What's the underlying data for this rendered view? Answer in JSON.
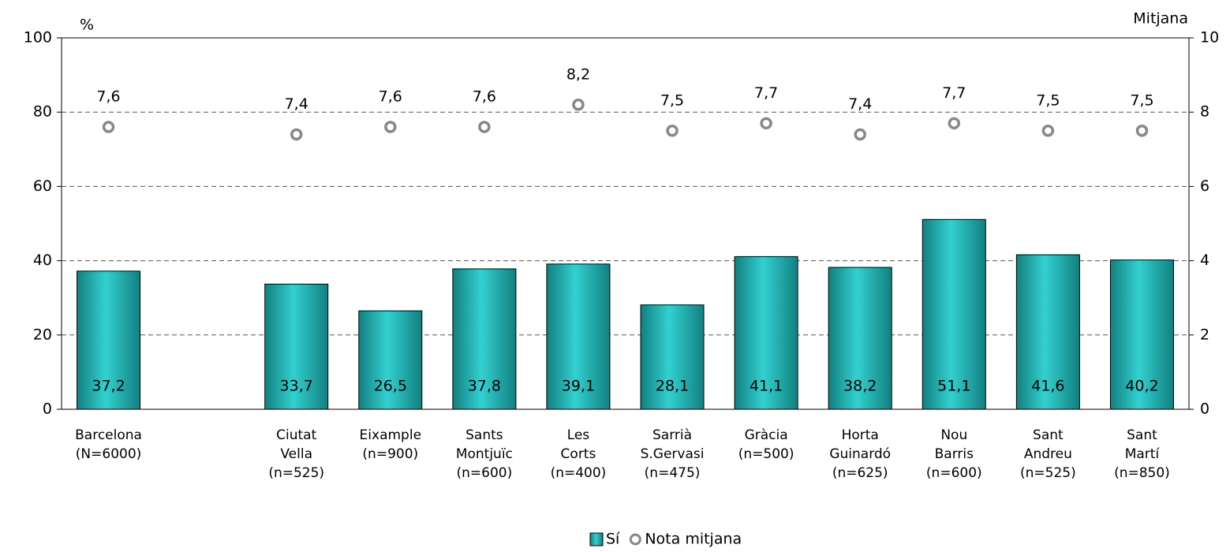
{
  "chart_data": {
    "type": "bar",
    "ylabel": "%",
    "y2label": "Mitjana",
    "categories": [
      "Barcelona\n(N=6000)",
      null,
      "Ciutat\nVella\n(n=525)",
      "Eixample\n(n=900)",
      "Sants\nMontjuïc\n(n=600)",
      "Les\nCorts\n(n=400)",
      "Sarrià\nS.Gervasi\n(n=475)",
      "Gràcia\n(n=500)",
      "Horta\nGuinardó\n(n=625)",
      "Nou\nBarris\n(n=600)",
      "Sant\nAndreu\n(n=525)",
      "Sant\nMartí\n(n=850)"
    ],
    "series": [
      {
        "name": "Sí",
        "type": "bar",
        "color": "#2ec8c8",
        "values": [
          37.2,
          null,
          33.7,
          26.5,
          37.8,
          39.1,
          28.1,
          41.1,
          38.2,
          51.1,
          41.6,
          40.2
        ],
        "value_labels": [
          "37,2",
          null,
          "33,7",
          "26,5",
          "37,8",
          "39,1",
          "28,1",
          "41,1",
          "38,2",
          "51,1",
          "41,6",
          "40,2"
        ]
      },
      {
        "name": "Nota mitjana",
        "type": "scatter",
        "axis": "y2",
        "color": "#888888",
        "values": [
          7.6,
          null,
          7.4,
          7.6,
          7.6,
          8.2,
          7.5,
          7.7,
          7.4,
          7.7,
          7.5,
          7.5
        ],
        "value_labels": [
          "7,6",
          null,
          "7,4",
          "7,6",
          "7,6",
          "8,2",
          "7,5",
          "7,7",
          "7,4",
          "7,7",
          "7,5",
          "7,5"
        ]
      }
    ],
    "ylim": [
      0,
      100
    ],
    "yticks": [
      0,
      20,
      40,
      60,
      80,
      100
    ],
    "y2lim": [
      0,
      10
    ],
    "y2ticks": [
      0,
      2,
      4,
      6,
      8,
      10
    ],
    "grid": true,
    "legend": "bottom"
  }
}
